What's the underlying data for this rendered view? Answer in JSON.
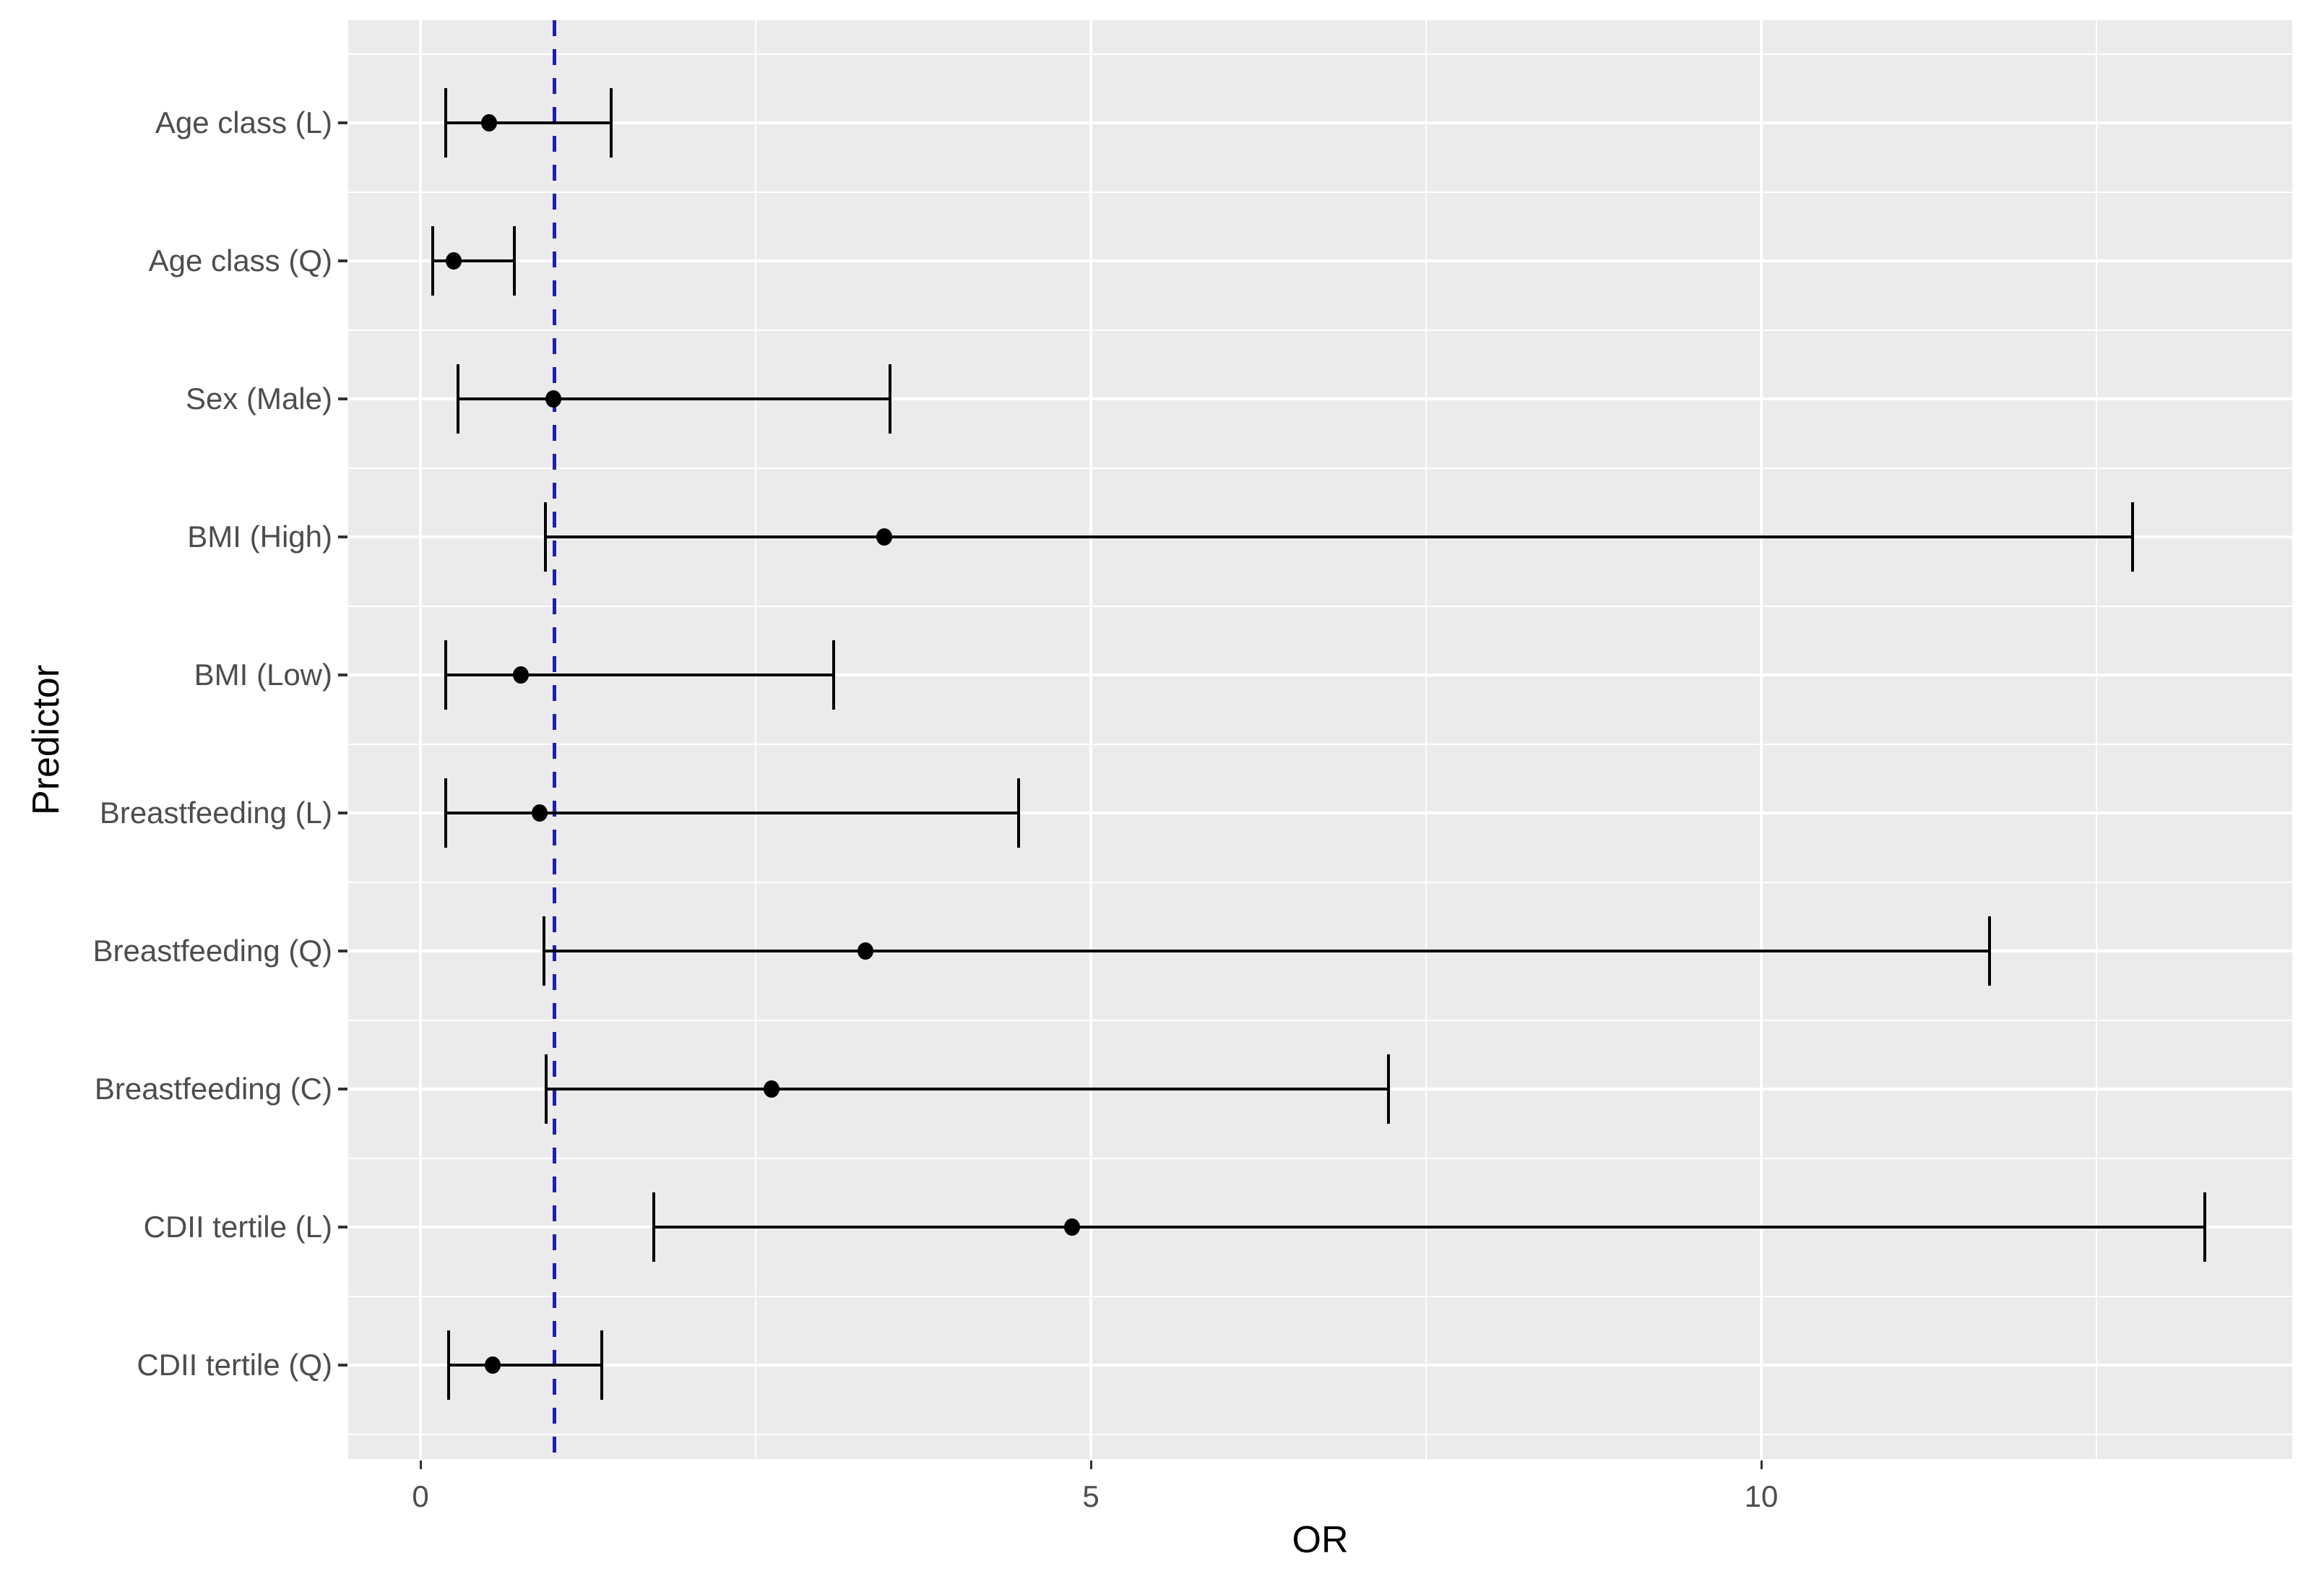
{
  "figure": {
    "kind": "forest plot (odds ratios with 95% confidence intervals)",
    "background": "#FFFFFF"
  },
  "chart_data": {
    "type": "scatter",
    "subtype": "forest-plot-horizontal-ci",
    "title": "",
    "xlabel": "OR",
    "ylabel": "Predictor",
    "x_ticks": [
      0,
      5,
      10
    ],
    "x_minor_gridlines": [
      2.5,
      7.5,
      12.5
    ],
    "xlim": [
      -0.54,
      13.97
    ],
    "grid": "on",
    "legend": "none",
    "reference_line": {
      "x": 1,
      "style": "dashed",
      "color": "#1F1FAE"
    },
    "categories_top_to_bottom": [
      "Age class (L)",
      "Age class (Q)",
      "Sex (Male)",
      "BMI (High)",
      "BMI (Low)",
      "Breastfeeding (L)",
      "Breastfeeding (Q)",
      "Breastfeeding (C)",
      "CDII tertile (L)",
      "CDII tertile (Q)"
    ],
    "points": [
      {
        "label": "Age class (L)",
        "or": 0.51,
        "ci_low": 0.19,
        "ci_high": 1.42
      },
      {
        "label": "Age class (Q)",
        "or": 0.25,
        "ci_low": 0.09,
        "ci_high": 0.7
      },
      {
        "label": "Sex (Male)",
        "or": 0.99,
        "ci_low": 0.28,
        "ci_high": 3.5
      },
      {
        "label": "BMI (High)",
        "or": 3.46,
        "ci_low": 0.93,
        "ci_high": 12.77
      },
      {
        "label": "BMI (Low)",
        "or": 0.75,
        "ci_low": 0.19,
        "ci_high": 3.08
      },
      {
        "label": "Breastfeeding (L)",
        "or": 0.89,
        "ci_low": 0.19,
        "ci_high": 4.46
      },
      {
        "label": "Breastfeeding (Q)",
        "or": 3.32,
        "ci_low": 0.92,
        "ci_high": 11.7
      },
      {
        "label": "Breastfeeding (C)",
        "or": 2.62,
        "ci_low": 0.94,
        "ci_high": 7.22
      },
      {
        "label": "CDII tertile (L)",
        "or": 4.86,
        "ci_low": 1.74,
        "ci_high": 13.31
      },
      {
        "label": "CDII tertile (Q)",
        "or": 0.54,
        "ci_low": 0.21,
        "ci_high": 1.35
      }
    ],
    "colors": {
      "panel_background": "#EBEBEB",
      "gridline": "#FFFFFF",
      "point_and_ci": "#000000",
      "axis_text": "#4D4D4D",
      "axis_title": "#000000",
      "tick_mark": "#333333",
      "reference_line": "#1F1FAE"
    }
  }
}
